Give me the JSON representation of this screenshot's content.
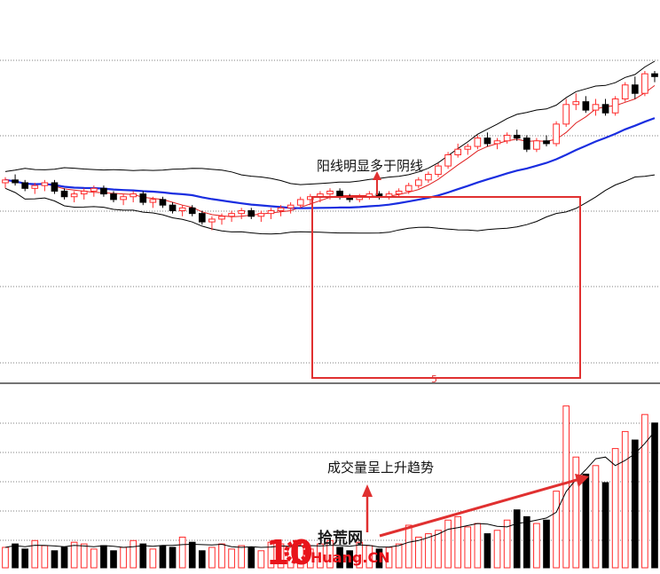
{
  "chart_data": [
    {
      "type": "candlestick",
      "panel": "price",
      "title": "",
      "ylim": [
        0,
        100
      ],
      "grid": "horizontal dotted",
      "colors": {
        "up": "#ff2a2a",
        "down": "#000000",
        "ma_short": "#e02020",
        "ma_long": "#1a2ee0",
        "band": "#000000",
        "box": "#e03030",
        "arrow": "#e03030"
      },
      "candles": [
        {
          "o": 60,
          "h": 62,
          "l": 58,
          "c": 61
        },
        {
          "o": 61,
          "h": 63,
          "l": 59,
          "c": 60
        },
        {
          "o": 60,
          "h": 61,
          "l": 57,
          "c": 58
        },
        {
          "o": 58,
          "h": 60,
          "l": 56,
          "c": 59
        },
        {
          "o": 59,
          "h": 61,
          "l": 57,
          "c": 60
        },
        {
          "o": 60,
          "h": 61,
          "l": 56,
          "c": 57
        },
        {
          "o": 57,
          "h": 58,
          "l": 54,
          "c": 55
        },
        {
          "o": 55,
          "h": 57,
          "l": 53,
          "c": 56
        },
        {
          "o": 56,
          "h": 58,
          "l": 54,
          "c": 57
        },
        {
          "o": 57,
          "h": 59,
          "l": 55,
          "c": 58
        },
        {
          "o": 58,
          "h": 59,
          "l": 55,
          "c": 56
        },
        {
          "o": 56,
          "h": 57,
          "l": 53,
          "c": 54
        },
        {
          "o": 54,
          "h": 56,
          "l": 52,
          "c": 55
        },
        {
          "o": 55,
          "h": 57,
          "l": 53,
          "c": 56
        },
        {
          "o": 56,
          "h": 57,
          "l": 52,
          "c": 53
        },
        {
          "o": 53,
          "h": 55,
          "l": 51,
          "c": 54
        },
        {
          "o": 54,
          "h": 55,
          "l": 51,
          "c": 52
        },
        {
          "o": 52,
          "h": 53,
          "l": 49,
          "c": 50
        },
        {
          "o": 50,
          "h": 52,
          "l": 48,
          "c": 51
        },
        {
          "o": 51,
          "h": 52,
          "l": 48,
          "c": 49
        },
        {
          "o": 49,
          "h": 50,
          "l": 45,
          "c": 46
        },
        {
          "o": 46,
          "h": 48,
          "l": 43,
          "c": 47
        },
        {
          "o": 47,
          "h": 49,
          "l": 45,
          "c": 48
        },
        {
          "o": 48,
          "h": 50,
          "l": 46,
          "c": 49
        },
        {
          "o": 49,
          "h": 51,
          "l": 47,
          "c": 50
        },
        {
          "o": 50,
          "h": 51,
          "l": 47,
          "c": 48
        },
        {
          "o": 48,
          "h": 50,
          "l": 46,
          "c": 49
        },
        {
          "o": 49,
          "h": 51,
          "l": 47,
          "c": 50
        },
        {
          "o": 50,
          "h": 52,
          "l": 48,
          "c": 51
        },
        {
          "o": 51,
          "h": 53,
          "l": 49,
          "c": 52
        },
        {
          "o": 52,
          "h": 55,
          "l": 51,
          "c": 54
        },
        {
          "o": 54,
          "h": 56,
          "l": 52,
          "c": 55
        },
        {
          "o": 55,
          "h": 57,
          "l": 53,
          "c": 56
        },
        {
          "o": 56,
          "h": 58,
          "l": 54,
          "c": 57
        },
        {
          "o": 57,
          "h": 58,
          "l": 54,
          "c": 55
        },
        {
          "o": 55,
          "h": 56,
          "l": 53,
          "c": 54
        },
        {
          "o": 54,
          "h": 56,
          "l": 53,
          "c": 55
        },
        {
          "o": 55,
          "h": 57,
          "l": 54,
          "c": 56
        },
        {
          "o": 56,
          "h": 57,
          "l": 54,
          "c": 55
        },
        {
          "o": 55,
          "h": 57,
          "l": 54,
          "c": 56
        },
        {
          "o": 56,
          "h": 58,
          "l": 55,
          "c": 57
        },
        {
          "o": 57,
          "h": 60,
          "l": 56,
          "c": 59
        },
        {
          "o": 59,
          "h": 62,
          "l": 58,
          "c": 61
        },
        {
          "o": 61,
          "h": 64,
          "l": 60,
          "c": 63
        },
        {
          "o": 63,
          "h": 67,
          "l": 62,
          "c": 66
        },
        {
          "o": 66,
          "h": 71,
          "l": 65,
          "c": 70
        },
        {
          "o": 70,
          "h": 74,
          "l": 69,
          "c": 72
        },
        {
          "o": 72,
          "h": 74,
          "l": 70,
          "c": 73
        },
        {
          "o": 73,
          "h": 77,
          "l": 72,
          "c": 76
        },
        {
          "o": 76,
          "h": 78,
          "l": 73,
          "c": 74
        },
        {
          "o": 74,
          "h": 76,
          "l": 72,
          "c": 75
        },
        {
          "o": 75,
          "h": 78,
          "l": 74,
          "c": 77
        },
        {
          "o": 77,
          "h": 79,
          "l": 75,
          "c": 76
        },
        {
          "o": 76,
          "h": 77,
          "l": 71,
          "c": 72
        },
        {
          "o": 72,
          "h": 76,
          "l": 71,
          "c": 75
        },
        {
          "o": 75,
          "h": 77,
          "l": 73,
          "c": 74
        },
        {
          "o": 74,
          "h": 82,
          "l": 73,
          "c": 81
        },
        {
          "o": 81,
          "h": 90,
          "l": 80,
          "c": 88
        },
        {
          "o": 88,
          "h": 92,
          "l": 86,
          "c": 89
        },
        {
          "o": 89,
          "h": 91,
          "l": 85,
          "c": 86
        },
        {
          "o": 86,
          "h": 90,
          "l": 84,
          "c": 88
        },
        {
          "o": 88,
          "h": 90,
          "l": 84,
          "c": 85
        },
        {
          "o": 85,
          "h": 91,
          "l": 84,
          "c": 90
        },
        {
          "o": 90,
          "h": 96,
          "l": 89,
          "c": 95
        },
        {
          "o": 95,
          "h": 98,
          "l": 90,
          "c": 92
        },
        {
          "o": 92,
          "h": 100,
          "l": 91,
          "c": 99
        },
        {
          "o": 99,
          "h": 100,
          "l": 96,
          "c": 98
        }
      ],
      "box_range": [
        42,
        77
      ]
    },
    {
      "type": "bar",
      "panel": "volume",
      "ylim": [
        0,
        100
      ],
      "grid": "horizontal dotted",
      "colors": {
        "up": "#ff2a2a",
        "down": "#000000",
        "ma": "#000000"
      },
      "values": [
        12,
        14,
        11,
        16,
        13,
        10,
        12,
        15,
        14,
        11,
        13,
        10,
        12,
        16,
        14,
        11,
        13,
        12,
        18,
        15,
        10,
        12,
        14,
        11,
        13,
        12,
        10,
        15,
        14,
        12,
        13,
        11,
        14,
        16,
        12,
        10,
        15,
        13,
        11,
        12,
        14,
        25,
        18,
        20,
        22,
        28,
        30,
        24,
        26,
        20,
        22,
        28,
        34,
        30,
        26,
        28,
        45,
        95,
        65,
        55,
        60,
        50,
        70,
        80,
        75,
        90,
        85
      ]
    }
  ],
  "annotations": {
    "top": "阳线明显多于阴线",
    "bottom": "成交量呈上升趋势",
    "marker": "5"
  },
  "watermark": {
    "number": "10",
    "cn": "拾荒网",
    "en": "Huang.CN"
  }
}
